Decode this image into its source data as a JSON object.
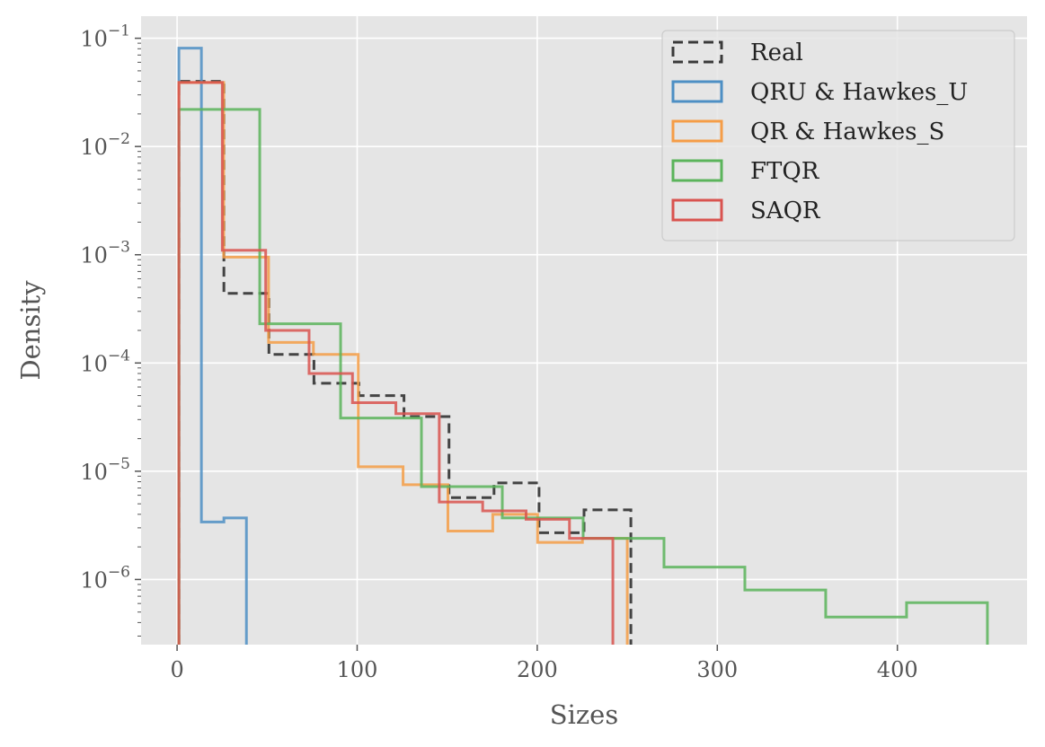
{
  "chart_data": {
    "type": "histogram",
    "title": "",
    "xlabel": "Sizes",
    "ylabel": "Density",
    "y_scale": "log",
    "xlim": [
      -20,
      472
    ],
    "ylim": [
      2.5e-07,
      0.16
    ],
    "grid": true,
    "legend_position": "top-right",
    "x_ticks": [
      0,
      100,
      200,
      300,
      400
    ],
    "y_ticks": [
      {
        "value": 1e-06,
        "base": "10",
        "exp": "−6"
      },
      {
        "value": 1e-05,
        "base": "10",
        "exp": "−5"
      },
      {
        "value": 0.0001,
        "base": "10",
        "exp": "−4"
      },
      {
        "value": 0.001,
        "base": "10",
        "exp": "−3"
      },
      {
        "value": 0.01,
        "base": "10",
        "exp": "−2"
      },
      {
        "value": 0.1,
        "base": "10",
        "exp": "−1"
      }
    ],
    "series": [
      {
        "name": "Real",
        "color": "#3a3a3a",
        "dashed": true,
        "edges": [
          1,
          26,
          51,
          76,
          101,
          126,
          151,
          176,
          201,
          226,
          252
        ],
        "values": [
          0.04,
          0.00044,
          0.00012,
          6.5e-05,
          5e-05,
          3.2e-05,
          5.7e-06,
          7.8e-06,
          2.7e-06,
          4.4e-06
        ]
      },
      {
        "name": "QRU & Hawkes_U",
        "color": "#4d8fc4",
        "dashed": false,
        "edges": [
          1,
          13.5,
          26,
          38.5
        ],
        "values": [
          0.081,
          3.4e-06,
          3.7e-06
        ]
      },
      {
        "name": "QR & Hawkes_S",
        "color": "#f59d47",
        "dashed": false,
        "edges": [
          1,
          25.9,
          50.8,
          75.7,
          100.6,
          125.5,
          150.4,
          175.3,
          200.2,
          225.1,
          250
        ],
        "values": [
          0.039,
          0.00095,
          0.000155,
          0.00012,
          1.1e-05,
          7.5e-06,
          2.8e-06,
          4e-06,
          2.2e-06,
          2.4e-06
        ]
      },
      {
        "name": "FTQR",
        "color": "#5bb45b",
        "dashed": false,
        "edges": [
          1,
          45.9,
          90.8,
          135.7,
          180.6,
          225.5,
          270.4,
          315.3,
          360.2,
          405.1,
          450
        ],
        "values": [
          0.022,
          0.00023,
          3.1e-05,
          7.2e-06,
          3.7e-06,
          2.4e-06,
          1.3e-06,
          8e-07,
          4.5e-07,
          6.1e-07
        ]
      },
      {
        "name": "SAQR",
        "color": "#d9534f",
        "dashed": false,
        "edges": [
          1,
          25.1,
          49.2,
          73.3,
          97.4,
          121.5,
          145.6,
          169.7,
          193.8,
          217.9,
          242
        ],
        "values": [
          0.039,
          0.0011,
          0.0002,
          8e-05,
          4.3e-05,
          3.4e-05,
          5.2e-06,
          4.3e-06,
          3.6e-06,
          2.4e-06
        ]
      }
    ]
  }
}
